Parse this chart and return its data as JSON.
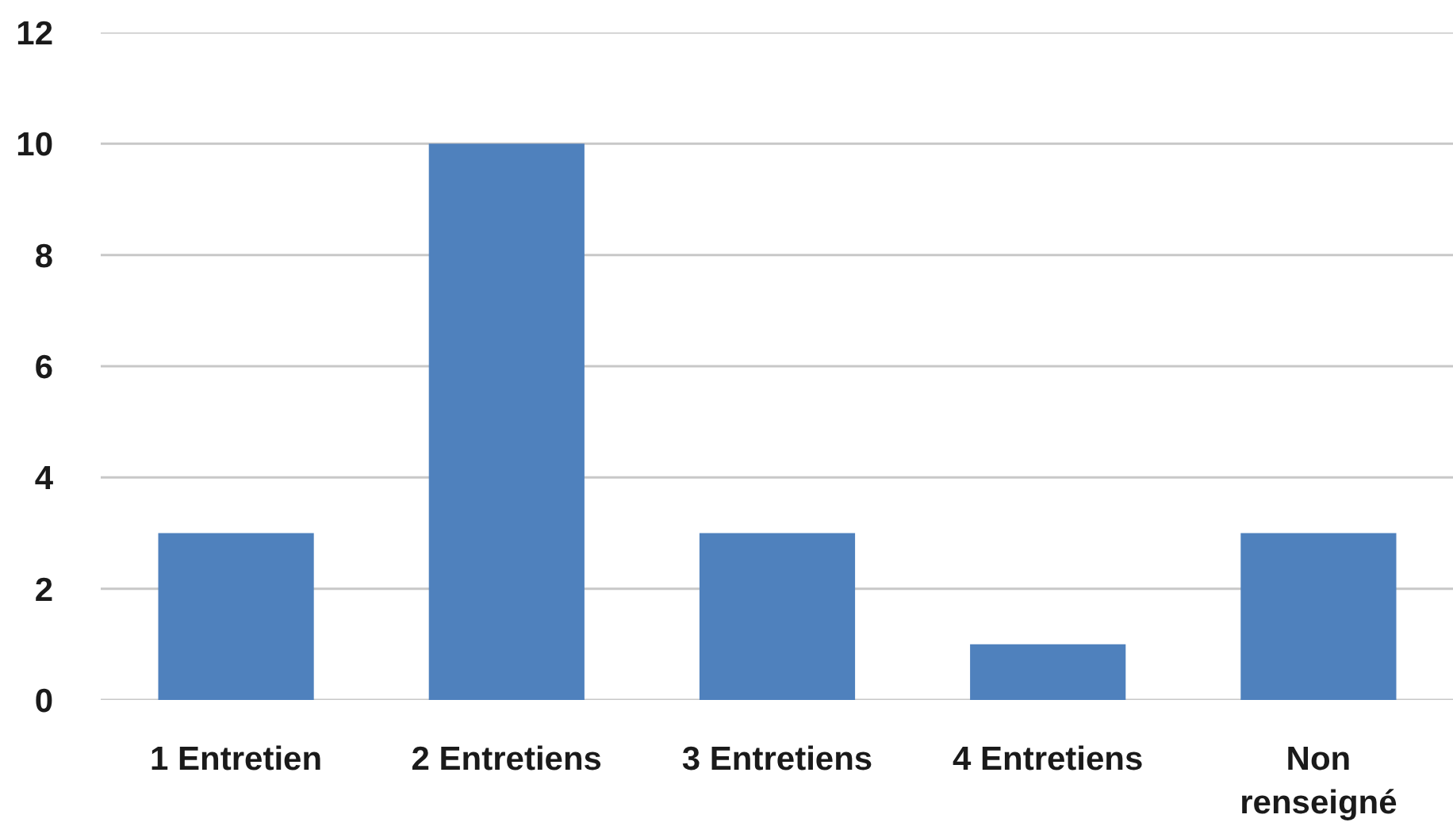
{
  "chart_data": {
    "type": "bar",
    "categories": [
      "1 Entretien",
      "2 Entretiens",
      "3 Entretiens",
      "4 Entretiens",
      "Non renseigné"
    ],
    "values": [
      3,
      10,
      3,
      1,
      3
    ],
    "color": "#4f81bd",
    "ylim": [
      0,
      12
    ],
    "yticks": [
      0,
      2,
      4,
      6,
      8,
      10,
      12
    ],
    "grid": "y"
  }
}
